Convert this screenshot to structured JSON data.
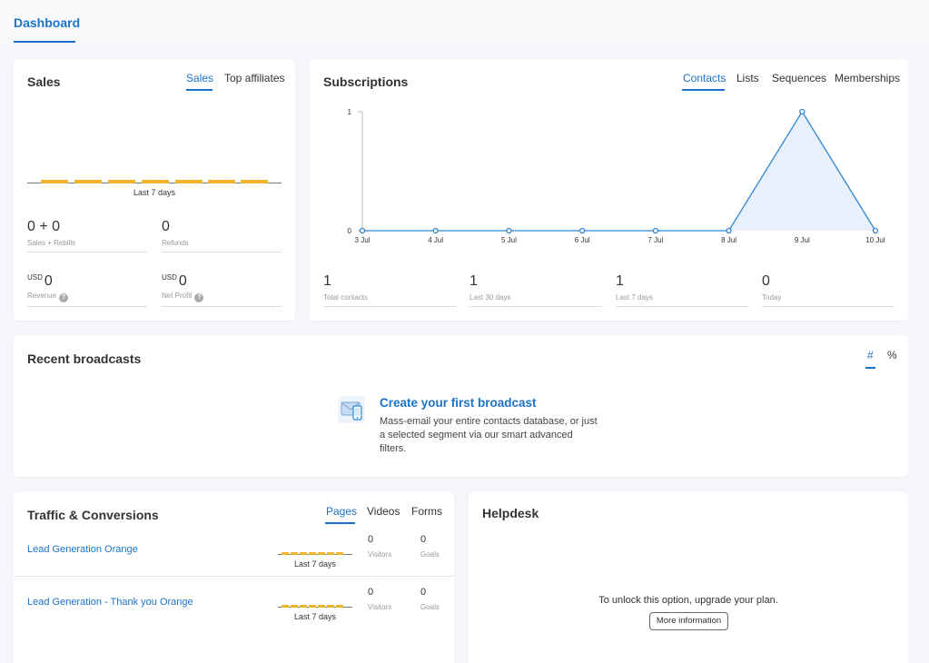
{
  "header": {
    "tab_dashboard": "Dashboard"
  },
  "sales": {
    "title": "Sales",
    "tabs": [
      "Sales",
      "Top affiliates"
    ],
    "chart_caption": "Last 7 days",
    "stats": [
      {
        "currency": "",
        "value": "0 + 0",
        "label": "Sales + Rebills",
        "help": false
      },
      {
        "currency": "",
        "value": "0",
        "label": "Refunds",
        "help": false
      },
      {
        "currency": "USD",
        "value": "0",
        "label": "Revenue",
        "help": true
      },
      {
        "currency": "USD",
        "value": "0",
        "label": "Net Profit",
        "help": true
      }
    ]
  },
  "subscriptions": {
    "title": "Subscriptions",
    "tabs": [
      "Contacts",
      "Lists",
      "Sequences",
      "Memberships"
    ],
    "stats": [
      {
        "value": "1",
        "label": "Total contacts"
      },
      {
        "value": "1",
        "label": "Last 30 days"
      },
      {
        "value": "1",
        "label": "Last 7 days"
      },
      {
        "value": "0",
        "label": "Today"
      }
    ]
  },
  "chart_data": {
    "type": "area",
    "x": [
      "3 Jul",
      "4 Jul",
      "5 Jul",
      "6 Jul",
      "7 Jul",
      "8 Jul",
      "9 Jul",
      "10 Jul"
    ],
    "values": [
      0,
      0,
      0,
      0,
      0,
      0,
      1,
      0
    ],
    "yticks": [
      "0",
      "1"
    ],
    "ylim": [
      0,
      1
    ],
    "color": "#2f86d4",
    "fill": "#e8f1fb"
  },
  "broadcasts": {
    "title": "Recent broadcasts",
    "toggles": [
      "#",
      "%"
    ],
    "cta_title": "Create your first broadcast",
    "cta_text": "Mass-email your entire contacts database, or just a selected segment via our smart advanced filters.",
    "icon": "mail-mobile-icon"
  },
  "traffic": {
    "title": "Traffic & Conversions",
    "tabs": [
      "Pages",
      "Videos",
      "Forms"
    ],
    "rows": [
      {
        "name": "Lead Generation Orange",
        "caption": "Last 7 days",
        "visitors": "0",
        "visitors_label": "Visitors",
        "goals": "0",
        "goals_label": "Goals"
      },
      {
        "name": "Lead Generation - Thank you Orange",
        "caption": "Last 7 days",
        "visitors": "0",
        "visitors_label": "Visitors",
        "goals": "0",
        "goals_label": "Goals"
      }
    ]
  },
  "helpdesk": {
    "title": "Helpdesk",
    "message": "To unlock this option, upgrade your plan.",
    "button": "More information"
  },
  "colors": {
    "accent": "#1a73c8",
    "sparkline": "#f0b429"
  }
}
